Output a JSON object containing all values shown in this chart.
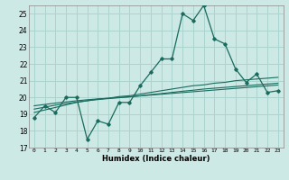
{
  "xlabel": "Humidex (Indice chaleur)",
  "xlim": [
    -0.5,
    23.5
  ],
  "ylim": [
    17,
    25.5
  ],
  "yticks": [
    17,
    18,
    19,
    20,
    21,
    22,
    23,
    24,
    25
  ],
  "xticks": [
    0,
    1,
    2,
    3,
    4,
    5,
    6,
    7,
    8,
    9,
    10,
    11,
    12,
    13,
    14,
    15,
    16,
    17,
    18,
    19,
    20,
    21,
    22,
    23
  ],
  "background_color": "#cce9e5",
  "grid_color": "#aad4cf",
  "line_color": "#1a6b5e",
  "main_series": [
    18.8,
    19.5,
    19.1,
    20.0,
    20.0,
    17.5,
    18.6,
    18.4,
    19.7,
    19.7,
    20.7,
    21.5,
    22.3,
    22.3,
    25.0,
    24.6,
    25.5,
    23.5,
    23.2,
    21.7,
    20.9,
    21.4,
    20.3,
    20.4
  ],
  "smooth_series1": [
    19.1,
    19.25,
    19.4,
    19.55,
    19.7,
    19.8,
    19.9,
    19.95,
    20.05,
    20.1,
    20.2,
    20.3,
    20.4,
    20.5,
    20.6,
    20.7,
    20.75,
    20.85,
    20.9,
    21.0,
    21.05,
    21.1,
    21.15,
    21.2
  ],
  "smooth_series2": [
    19.3,
    19.42,
    19.54,
    19.63,
    19.72,
    19.8,
    19.87,
    19.93,
    19.98,
    20.03,
    20.1,
    20.17,
    20.23,
    20.3,
    20.37,
    20.43,
    20.5,
    20.55,
    20.6,
    20.65,
    20.7,
    20.75,
    20.8,
    20.85
  ],
  "smooth_series3": [
    19.5,
    19.58,
    19.66,
    19.73,
    19.8,
    19.86,
    19.91,
    19.95,
    20.0,
    20.04,
    20.09,
    20.14,
    20.19,
    20.24,
    20.29,
    20.34,
    20.39,
    20.44,
    20.49,
    20.54,
    20.59,
    20.64,
    20.69,
    20.74
  ]
}
